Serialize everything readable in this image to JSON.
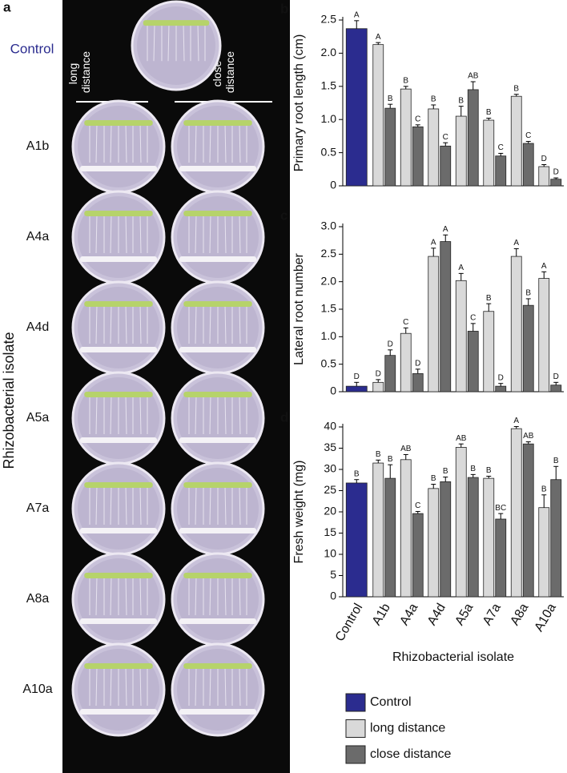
{
  "panel_a": {
    "label": "a",
    "control_label": "Control",
    "long_distance": "long distance",
    "close_distance": "close distance",
    "rows": [
      "A1b",
      "A4a",
      "A4d",
      "A5a",
      "A7a",
      "A8a",
      "A10a"
    ],
    "y_label": "Rhizobacterial isolate"
  },
  "chart_data": [
    {
      "type": "bar",
      "panel_label": "b",
      "y_label": "Primary root length (cm)",
      "ylim": [
        0,
        2.5
      ],
      "yticks": [
        0,
        0.5,
        {
          "value": 1,
          "label": "1.0"
        },
        1.5,
        {
          "value": 2,
          "label": "2.0"
        },
        2.5
      ],
      "series": [
        {
          "color": "#2b2c8f",
          "values": [
            2.37,
            null,
            null,
            null,
            null,
            null,
            null,
            null
          ],
          "errors": [
            0.12,
            null,
            null,
            null,
            null,
            null,
            null,
            null
          ],
          "letters": [
            "A",
            null,
            null,
            null,
            null,
            null,
            null,
            null
          ]
        },
        {
          "color": "#d9d9d9",
          "values": [
            null,
            2.13,
            1.46,
            1.16,
            1.05,
            0.99,
            1.35,
            0.29
          ],
          "errors": [
            null,
            0.03,
            0.04,
            0.06,
            0.15,
            0.03,
            0.03,
            0.03
          ],
          "letters": [
            null,
            "A",
            "B",
            "B",
            "B",
            "B",
            "B",
            "D"
          ]
        },
        {
          "color": "#6b6b6b",
          "values": [
            null,
            1.17,
            0.89,
            0.6,
            1.45,
            0.45,
            0.64,
            0.1
          ],
          "errors": [
            null,
            0.06,
            0.03,
            0.05,
            0.12,
            0.04,
            0.03,
            0.02
          ],
          "letters": [
            null,
            "B",
            "C",
            "C",
            "AB",
            "C",
            "C",
            "D"
          ]
        }
      ]
    },
    {
      "type": "bar",
      "panel_label": "c",
      "y_label": "Lateral root number",
      "ylim": [
        0,
        3
      ],
      "yticks": [
        0,
        0.5,
        {
          "value": 1,
          "label": "1.0"
        },
        1.5,
        {
          "value": 2,
          "label": "2.0"
        },
        2.5,
        {
          "value": 3,
          "label": "3.0"
        }
      ],
      "series": [
        {
          "color": "#2b2c8f",
          "values": [
            0.1,
            null,
            null,
            null,
            null,
            null,
            null,
            null
          ],
          "errors": [
            0.07,
            null,
            null,
            null,
            null,
            null,
            null,
            null
          ],
          "letters": [
            "D",
            null,
            null,
            null,
            null,
            null,
            null,
            null
          ]
        },
        {
          "color": "#d9d9d9",
          "values": [
            null,
            0.17,
            1.06,
            2.46,
            2.02,
            1.46,
            2.46,
            2.06
          ],
          "errors": [
            null,
            0.05,
            0.1,
            0.15,
            0.13,
            0.14,
            0.14,
            0.12
          ],
          "letters": [
            null,
            "D",
            "C",
            "A",
            "A",
            "B",
            "A",
            "A"
          ]
        },
        {
          "color": "#6b6b6b",
          "values": [
            null,
            0.66,
            0.33,
            2.73,
            1.1,
            0.1,
            1.57,
            0.12
          ],
          "errors": [
            null,
            0.1,
            0.08,
            0.12,
            0.14,
            0.05,
            0.12,
            0.05
          ],
          "letters": [
            null,
            "D",
            "D",
            "A",
            "C",
            "D",
            "B",
            "D"
          ]
        }
      ]
    },
    {
      "type": "bar",
      "panel_label": "d",
      "y_label": "Fresh weight (mg)",
      "x_label": "Rhizobacterial isolate",
      "categories": [
        "Control",
        "A1b",
        "A4a",
        "A4d",
        "A5a",
        "A7a",
        "A8a",
        "A10a"
      ],
      "ylim": [
        0,
        40
      ],
      "yticks": [
        0,
        5,
        10,
        15,
        20,
        25,
        30,
        35,
        40
      ],
      "series": [
        {
          "name": "Control",
          "color": "#2b2c8f",
          "values": [
            26.8,
            null,
            null,
            null,
            null,
            null,
            null,
            null
          ],
          "errors": [
            0.8,
            null,
            null,
            null,
            null,
            null,
            null,
            null
          ],
          "letters": [
            "B",
            null,
            null,
            null,
            null,
            null,
            null,
            null
          ]
        },
        {
          "name": "long distance",
          "color": "#d9d9d9",
          "values": [
            null,
            31.5,
            32.3,
            25.5,
            35.2,
            27.9,
            39.6,
            21
          ],
          "errors": [
            null,
            0.7,
            1.2,
            1,
            0.8,
            0.5,
            0.5,
            3
          ],
          "letters": [
            null,
            "B",
            "AB",
            "B",
            "AB",
            "B",
            "A",
            "B"
          ]
        },
        {
          "name": "close distance",
          "color": "#6b6b6b",
          "values": [
            null,
            27.9,
            19.6,
            27.1,
            28.1,
            18.3,
            36,
            27.6
          ],
          "errors": [
            null,
            3.2,
            0.5,
            1.1,
            0.7,
            1.3,
            0.5,
            3.1
          ],
          "letters": [
            null,
            "B",
            "C",
            "B",
            "B",
            "BC",
            "AB",
            "B"
          ]
        }
      ]
    }
  ]
}
